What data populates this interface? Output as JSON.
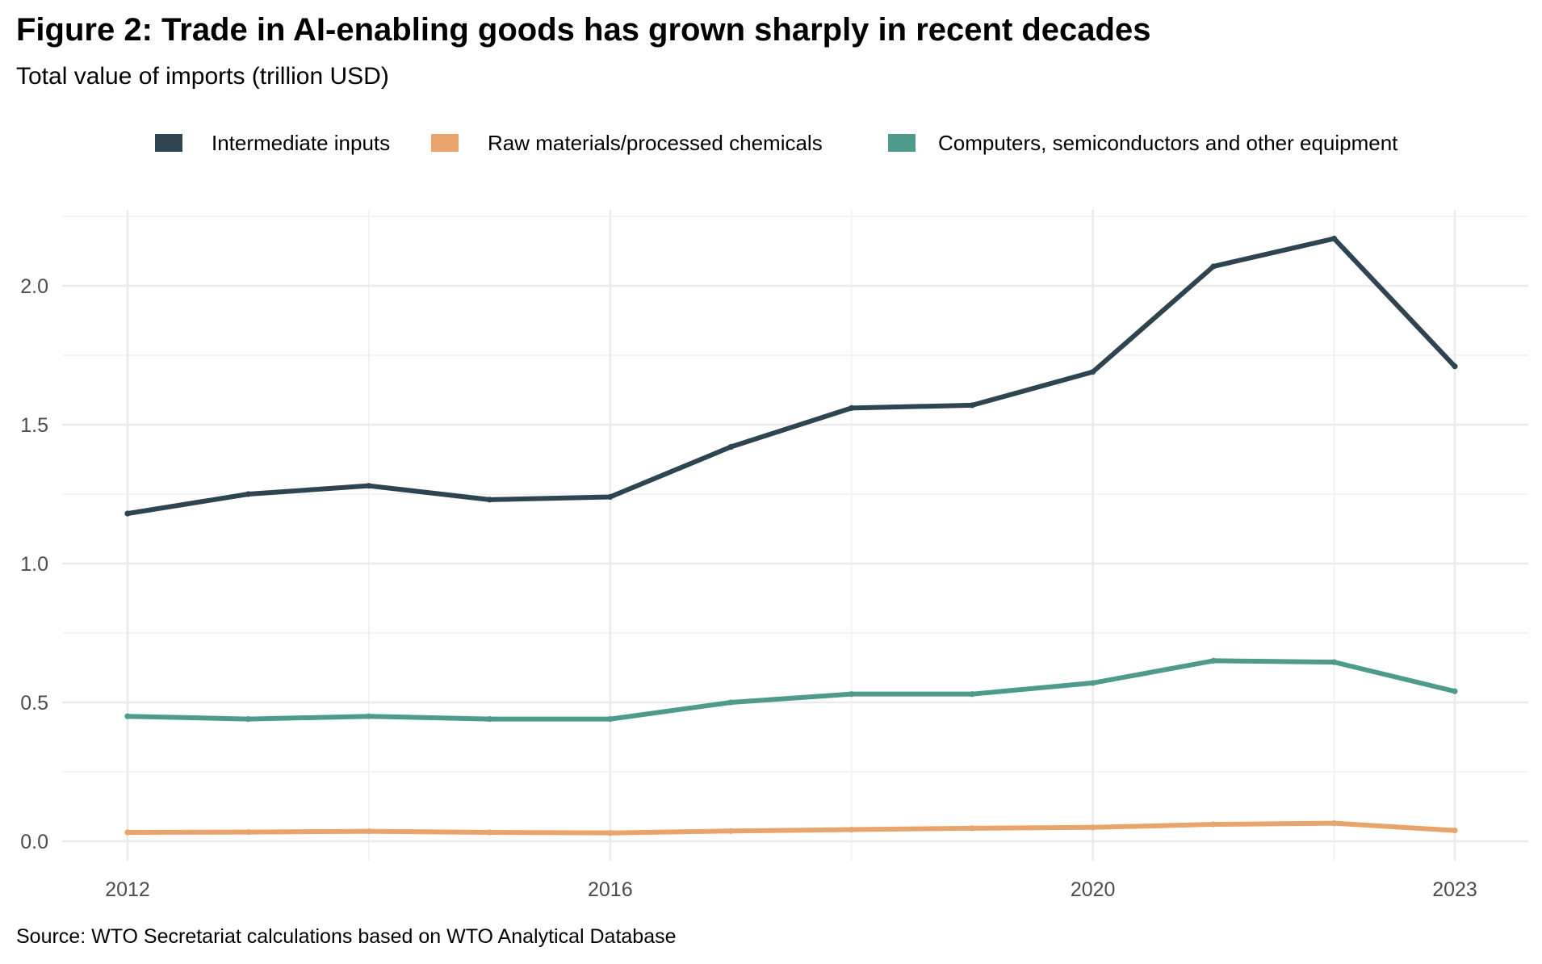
{
  "chart_data": {
    "type": "line",
    "title": "Figure 2: Trade in AI-enabling goods has grown sharply in recent decades",
    "subtitle": "Total value of imports (trillion USD)",
    "caption": "Source: WTO Secretariat calculations based on WTO Analytical Database",
    "xlabel": "",
    "ylabel": "",
    "x": [
      2012,
      2013,
      2014,
      2015,
      2016,
      2017,
      2018,
      2019,
      2020,
      2021,
      2022,
      2023
    ],
    "x_ticks": [
      "2012",
      "2016",
      "2020",
      "2023"
    ],
    "x_tick_values": [
      2012,
      2016,
      2020,
      2023
    ],
    "x_minor_values": [
      2014,
      2018,
      2022
    ],
    "y_ticks": [
      "0.0",
      "0.5",
      "1.0",
      "1.5",
      "2.0"
    ],
    "y_tick_values": [
      0,
      0.5,
      1.0,
      1.5,
      2.0
    ],
    "y_minor_values": [
      0.25,
      0.75,
      1.25,
      1.75,
      2.25
    ],
    "xlim": [
      2011.5,
      2023.6
    ],
    "ylim": [
      -0.07,
      2.32
    ],
    "grid": true,
    "legend_position": "top",
    "series": [
      {
        "name": "Intermediate inputs",
        "color": "#2e4450",
        "values": [
          1.18,
          1.25,
          1.28,
          1.23,
          1.24,
          1.42,
          1.56,
          1.57,
          1.69,
          2.07,
          2.17,
          1.71
        ]
      },
      {
        "name": "Raw materials/processed chemicals",
        "color": "#e8a46b",
        "values": [
          0.032,
          0.033,
          0.036,
          0.032,
          0.03,
          0.037,
          0.042,
          0.047,
          0.05,
          0.061,
          0.065,
          0.039
        ]
      },
      {
        "name": "Computers, semiconductors and other equipment",
        "color": "#4e9a8d",
        "values": [
          0.45,
          0.44,
          0.45,
          0.44,
          0.44,
          0.5,
          0.53,
          0.53,
          0.57,
          0.65,
          0.645,
          0.54
        ]
      }
    ]
  }
}
